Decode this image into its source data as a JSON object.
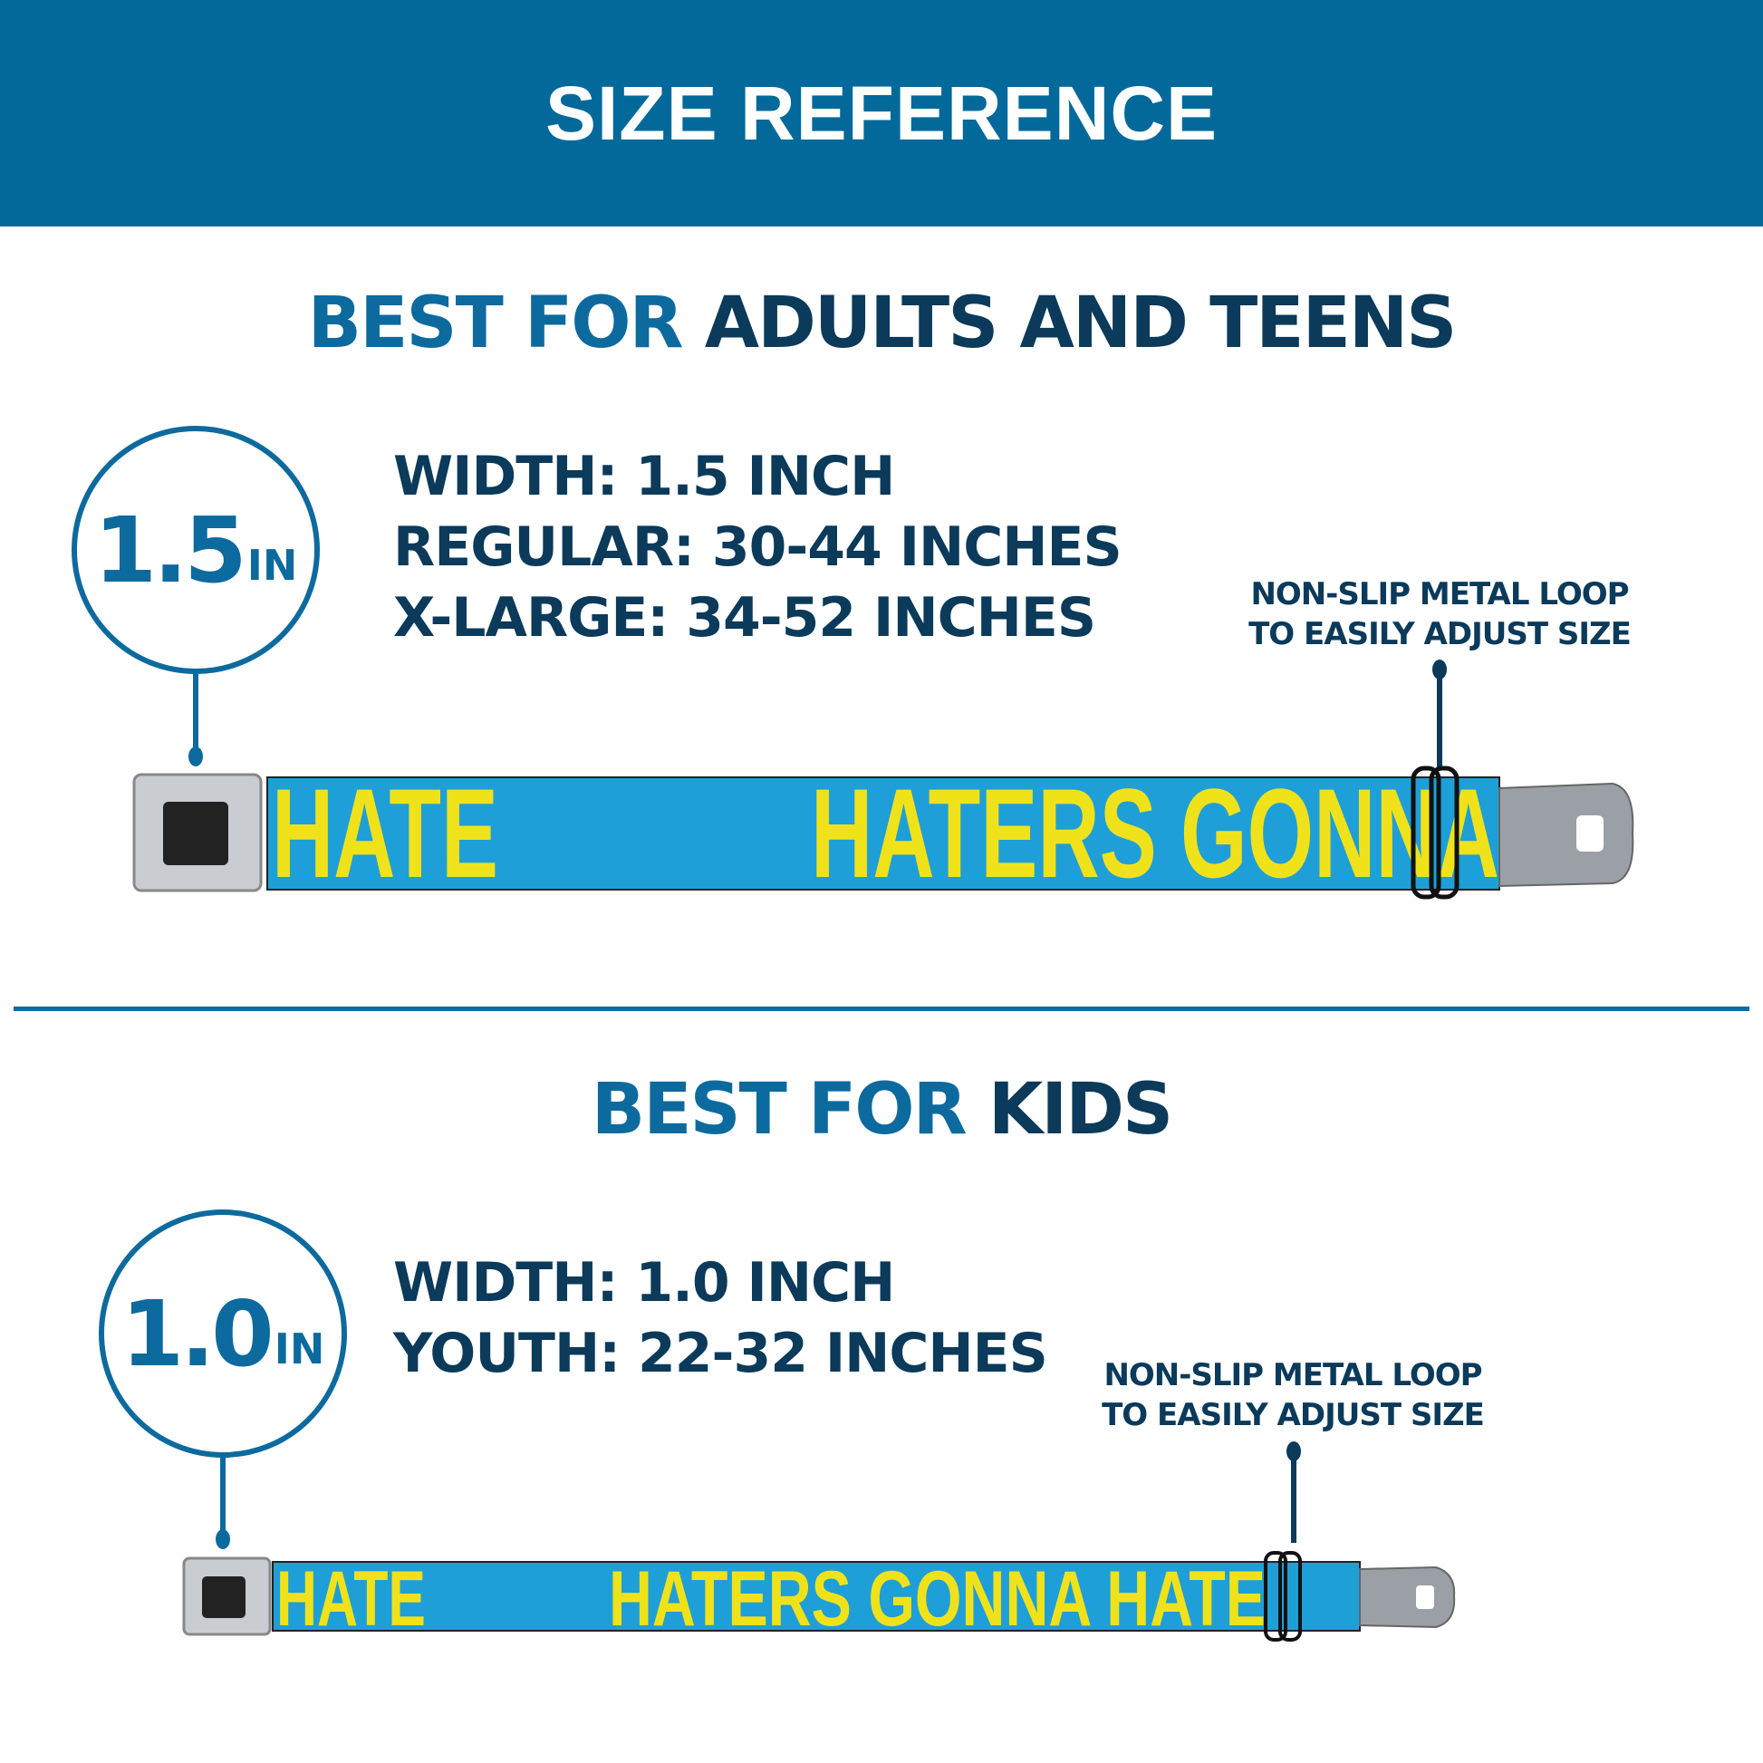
{
  "header": {
    "title": "SIZE REFERENCE"
  },
  "colors": {
    "header_bg": "#02699a",
    "accent": "#0d6a9e",
    "navy": "#0b3a5a",
    "strap_blue": "#1e9fd8",
    "strap_yellow": "#f0e21a"
  },
  "adults": {
    "heading_accent": "BEST FOR",
    "heading_main": "ADULTS AND TEENS",
    "badge_value": "1.5",
    "badge_unit": "IN",
    "specs": [
      "WIDTH: 1.5 INCH",
      "REGULAR: 30-44 INCHES",
      "X-LARGE: 34-52 INCHES"
    ],
    "callout": [
      "NON-SLIP METAL LOOP",
      "TO EASILY ADJUST SIZE"
    ],
    "strap_text_left": "HATE",
    "strap_text_right": "HATERS GONNA"
  },
  "kids": {
    "heading_accent": "BEST FOR",
    "heading_main": "KIDS",
    "badge_value": "1.0",
    "badge_unit": "IN",
    "specs": [
      "WIDTH: 1.0 INCH",
      "YOUTH: 22-32 INCHES"
    ],
    "callout": [
      "NON-SLIP METAL LOOP",
      "TO EASILY ADJUST SIZE"
    ],
    "strap_text_left": "HATE",
    "strap_text_right": "HATERS GONNA HATE"
  }
}
